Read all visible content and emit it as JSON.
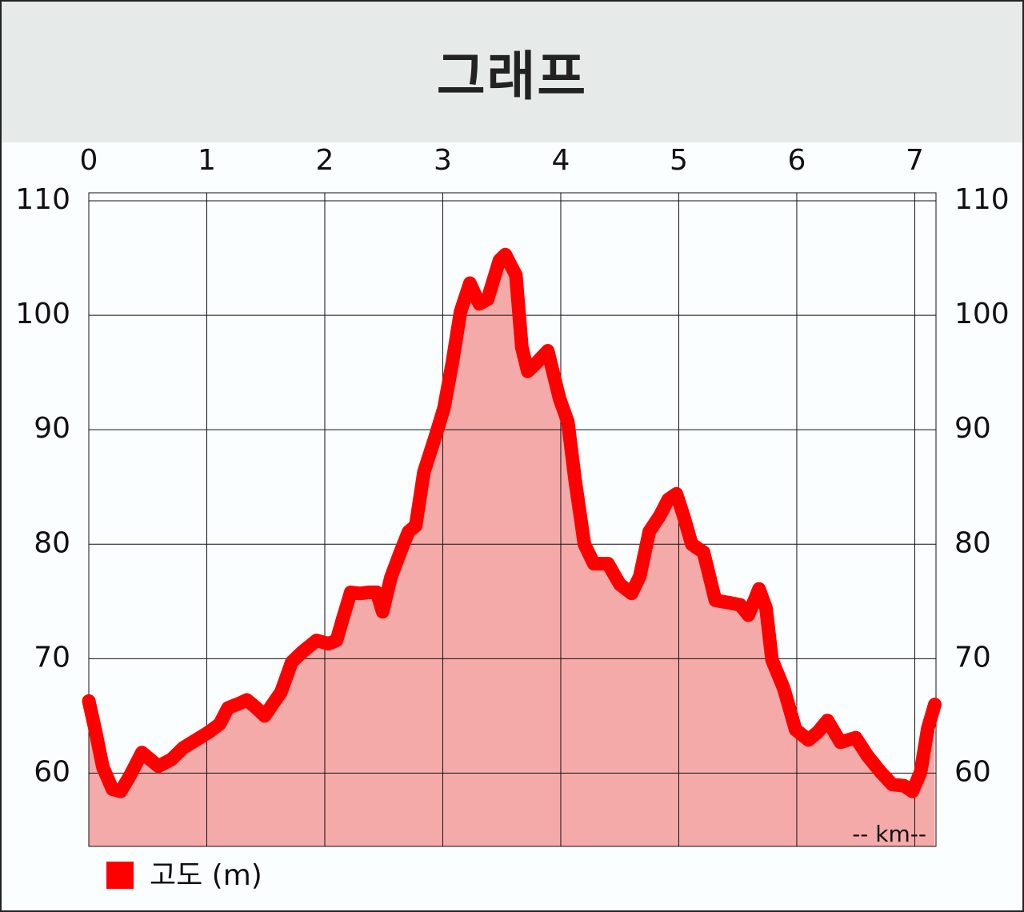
{
  "chart_data": {
    "type": "area",
    "title": "그래프",
    "x": [
      0,
      0.05,
      0.12,
      0.2,
      0.27,
      0.35,
      0.45,
      0.52,
      0.59,
      0.7,
      0.8,
      0.91,
      1.02,
      1.11,
      1.18,
      1.28,
      1.34,
      1.42,
      1.49,
      1.55,
      1.63,
      1.72,
      1.81,
      1.93,
      2.03,
      2.1,
      2.15,
      2.22,
      2.3,
      2.37,
      2.44,
      2.49,
      2.56,
      2.64,
      2.71,
      2.77,
      2.84,
      2.94,
      3.01,
      3.08,
      3.15,
      3.23,
      3.31,
      3.38,
      3.48,
      3.53,
      3.62,
      3.67,
      3.72,
      3.79,
      3.89,
      3.99,
      4.06,
      4.12,
      4.2,
      4.28,
      4.4,
      4.5,
      4.6,
      4.67,
      4.75,
      4.84,
      4.91,
      4.98,
      5.04,
      5.11,
      5.21,
      5.31,
      5.42,
      5.52,
      5.59,
      5.68,
      5.74,
      5.79,
      5.89,
      5.99,
      6.1,
      6.18,
      6.26,
      6.37,
      6.5,
      6.6,
      6.71,
      6.81,
      6.91,
      6.98,
      7.05,
      7.11,
      7.17
    ],
    "series": [
      {
        "name": "고도 (m)",
        "color": "#ff0000",
        "fill_color": "#f4aaa9",
        "values": [
          66.3,
          64,
          60.5,
          58.6,
          58.4,
          59.8,
          61.8,
          61.2,
          60.6,
          61.2,
          62.2,
          62.9,
          63.6,
          64.3,
          65.7,
          66.1,
          66.4,
          65.7,
          65,
          65.9,
          67.1,
          69.7,
          70.6,
          71.6,
          71.3,
          71.6,
          73.4,
          75.8,
          75.7,
          75.8,
          75.8,
          74.1,
          77.1,
          79.3,
          81.1,
          81.6,
          86.3,
          89.5,
          91.9,
          95.8,
          100.3,
          102.8,
          101,
          101.4,
          104.8,
          105.3,
          103.5,
          97.2,
          95.1,
          95.8,
          96.9,
          92.7,
          90.7,
          85.7,
          80,
          78.3,
          78.3,
          76.5,
          75.7,
          77.2,
          81.1,
          82.5,
          83.9,
          84.4,
          82.5,
          80,
          79.3,
          75.1,
          74.9,
          74.7,
          73.8,
          76.1,
          74.4,
          69.9,
          67.4,
          63.8,
          62.9,
          63.6,
          64.6,
          62.7,
          63.1,
          61.5,
          60.1,
          59,
          58.9,
          58.4,
          60.1,
          63.9,
          66
        ]
      }
    ],
    "xlim": [
      0,
      7.18
    ],
    "xticks": [
      0,
      1,
      2,
      3,
      4,
      5,
      6,
      7
    ],
    "ylim": [
      53.6,
      110.7
    ],
    "yticks": [
      60,
      70,
      80,
      90,
      100,
      110
    ],
    "grid": true,
    "annotation": "-- km--"
  }
}
